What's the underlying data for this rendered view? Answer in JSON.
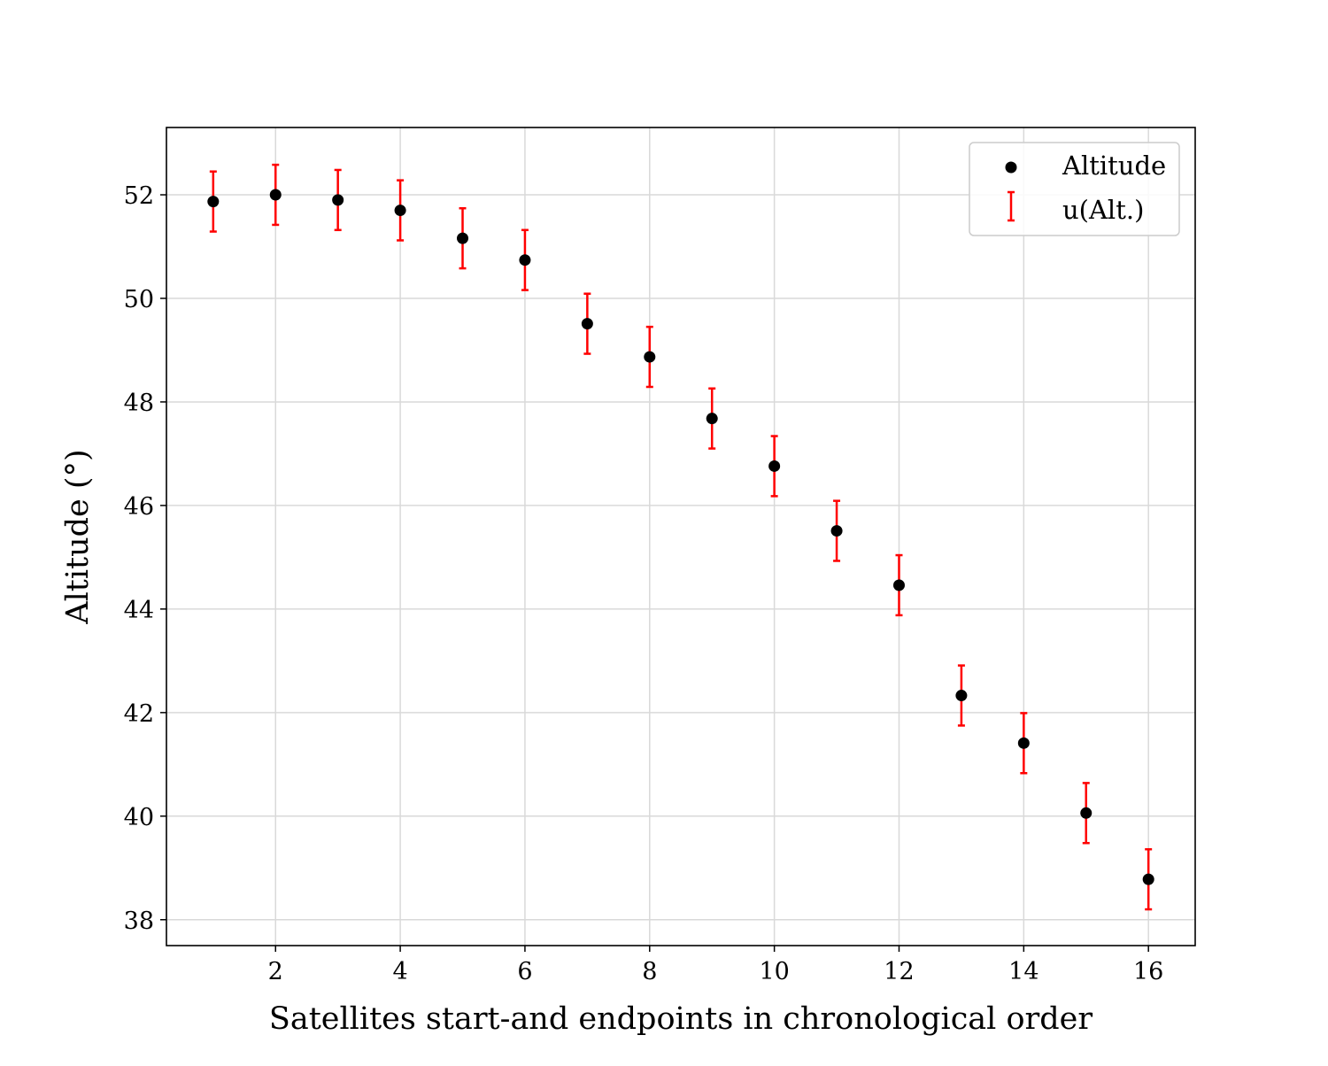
{
  "chart_data": {
    "type": "scatter",
    "title": "",
    "xlabel": "Satellites start-and endpoints in chronological order",
    "ylabel": "Altitude (°)",
    "xlim": [
      0.25,
      16.75
    ],
    "ylim": [
      37.5,
      53.3
    ],
    "xticks": [
      2,
      4,
      6,
      8,
      10,
      12,
      14,
      16
    ],
    "yticks": [
      38,
      40,
      42,
      44,
      46,
      48,
      50,
      52
    ],
    "grid": true,
    "legend_position": "top-right",
    "series": [
      {
        "name": "Altitude",
        "kind": "points",
        "color": "#000000",
        "x": [
          1,
          2,
          3,
          4,
          5,
          6,
          7,
          8,
          9,
          10,
          11,
          12,
          13,
          14,
          15,
          16
        ],
        "y": [
          51.87,
          52.0,
          51.9,
          51.7,
          51.16,
          50.74,
          49.51,
          48.87,
          47.68,
          46.76,
          45.51,
          44.46,
          42.33,
          41.41,
          40.06,
          38.78
        ]
      },
      {
        "name": "u(Alt.)",
        "kind": "errorbar",
        "color": "#ff0000",
        "y_error": [
          0.58,
          0.58,
          0.58,
          0.58,
          0.58,
          0.58,
          0.58,
          0.58,
          0.58,
          0.58,
          0.58,
          0.58,
          0.58,
          0.58,
          0.58,
          0.58
        ]
      }
    ]
  }
}
